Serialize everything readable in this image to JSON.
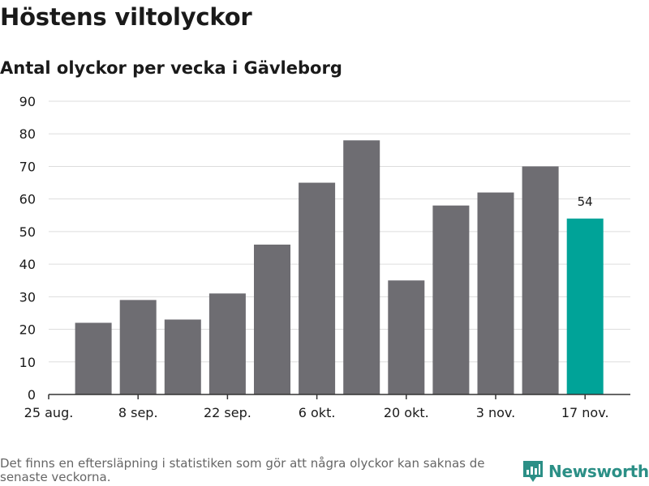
{
  "title": "Höstens viltolyckor",
  "subtitle": "Antal olyckor per vecka i Gävleborg",
  "footnote": "Det finns en eftersläpning i statistiken som gör att några olyckor kan saknas de senaste veckorna.",
  "brand": {
    "name": "Newsworthy",
    "icon": "newsworthy-logo-icon",
    "color": "#2b8f86"
  },
  "chart_data": {
    "type": "bar",
    "categories": [
      "25 aug.",
      "1 sep.",
      "8 sep.",
      "15 sep.",
      "22 sep.",
      "29 sep.",
      "6 okt.",
      "13 okt.",
      "20 okt.",
      "27 okt.",
      "3 nov.",
      "10 nov.",
      "17 nov."
    ],
    "tick_labels": [
      "25 aug.",
      "8 sep.",
      "22 sep.",
      "6 okt.",
      "20 okt.",
      "3 nov.",
      "17 nov."
    ],
    "values": [
      0,
      22,
      29,
      23,
      31,
      46,
      65,
      78,
      35,
      58,
      62,
      70,
      54
    ],
    "highlight_index": 12,
    "highlight_label": "54",
    "ylim": [
      0,
      90
    ],
    "yticks": [
      0,
      10,
      20,
      30,
      40,
      50,
      60,
      70,
      80,
      90
    ],
    "grid": true,
    "colors": {
      "bar": "#6e6d72",
      "highlight": "#00a398",
      "grid": "#dddddd",
      "axis": "#333333"
    }
  }
}
